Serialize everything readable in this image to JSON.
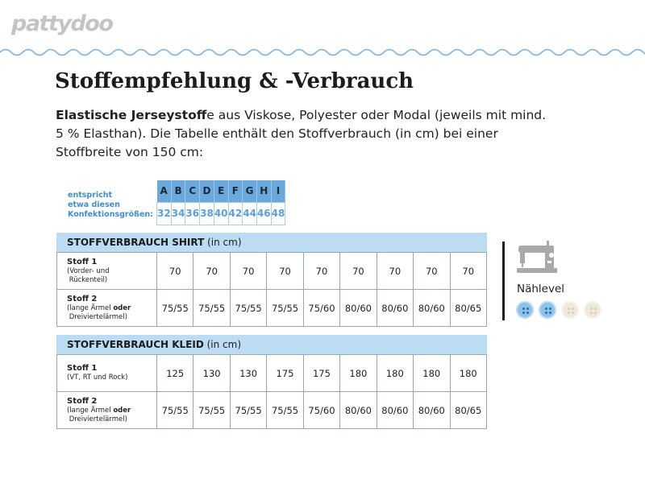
{
  "brand": {
    "logo": "pattydoo"
  },
  "heading": {
    "title": "Stoffempfehlung & -Verbrauch"
  },
  "intro": {
    "bold": "Elastische Jerseystoff",
    "text": "e aus Viskose, Polyester oder Modal (jeweils mit mind. 5 % Elasthan). Die Tabelle enthält den Stoffverbrauch (in cm) bei einer Stoffbreite von 150 cm:"
  },
  "sizes": {
    "label_lines": [
      "entspricht",
      "etwa diesen",
      "Konfektionsgrößen:"
    ],
    "letters": [
      "A",
      "B",
      "C",
      "D",
      "E",
      "F",
      "G",
      "H",
      "I"
    ],
    "numbers": [
      "32",
      "34",
      "36",
      "38",
      "40",
      "42",
      "44",
      "46",
      "48"
    ]
  },
  "shirt": {
    "title_bold": "STOFFVERBRAUCH SHIRT",
    "title_unit": "(in cm)",
    "rows": [
      {
        "name": "Stoff 1",
        "desc1": "(Vorder- und",
        "desc2": "Rückenteil)",
        "values": [
          "70",
          "70",
          "70",
          "70",
          "70",
          "70",
          "70",
          "70",
          "70"
        ]
      },
      {
        "name": "Stoff 2",
        "desc1_pre": "(lange Ärmel ",
        "desc1_bold": "oder",
        "desc2": "Dreiviertelärmel)",
        "values": [
          "75/55",
          "75/55",
          "75/55",
          "75/55",
          "75/60",
          "80/60",
          "80/60",
          "80/60",
          "80/65"
        ]
      }
    ]
  },
  "kleid": {
    "title_bold": "STOFFVERBRAUCH KLEID",
    "title_unit": "(in cm)",
    "rows": [
      {
        "name": "Stoff 1",
        "desc1": "(VT, RT und Rock)",
        "values": [
          "125",
          "130",
          "130",
          "175",
          "175",
          "180",
          "180",
          "180",
          "180"
        ]
      },
      {
        "name": "Stoff 2",
        "desc1_pre": "(lange Ärmel ",
        "desc1_bold": "oder",
        "desc2": "Dreiviertelärmel)",
        "values": [
          "75/55",
          "75/55",
          "75/55",
          "75/55",
          "75/60",
          "80/60",
          "80/60",
          "80/60",
          "80/65"
        ]
      }
    ]
  },
  "skill": {
    "label": "Nählevel",
    "icon": "sewing-machine-icon",
    "level": 2,
    "max": 4,
    "colors": {
      "active": "#8cc2ec",
      "inactive": "#efe8dc"
    }
  },
  "colors": {
    "accent": "#6ba9dc",
    "header": "#bcdcf3",
    "size_numbers": "#5aa0da",
    "wave": "#7fb6e3"
  }
}
